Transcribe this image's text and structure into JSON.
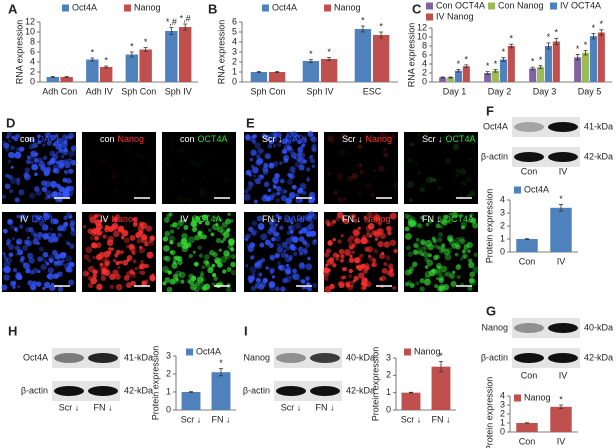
{
  "panel_letters": [
    "A",
    "B",
    "C",
    "D",
    "E",
    "F",
    "G",
    "H",
    "I"
  ],
  "chart_data": [
    {
      "type": "bar",
      "ylabel": "RNA expression",
      "categories": [
        "Adh Con",
        "Adh IV",
        "Sph Con",
        "Sph IV"
      ],
      "ylim": [
        0,
        12
      ],
      "yticks": [
        0,
        2,
        4,
        6,
        8,
        10,
        12
      ],
      "legend": "top",
      "series": [
        {
          "name": "Oct4A",
          "color": "#4f81bd",
          "values": [
            1,
            4.5,
            5.5,
            10.2
          ],
          "errors": [
            0.1,
            0.3,
            0.5,
            0.7
          ],
          "markers": [
            null,
            "*",
            "*",
            "*,#"
          ]
        },
        {
          "name": "Nanog",
          "color": "#c0504d",
          "values": [
            1,
            3,
            6.5,
            11
          ],
          "errors": [
            0.1,
            0.2,
            0.4,
            0.6
          ],
          "markers": [
            null,
            "*",
            "*",
            "*,#"
          ]
        }
      ]
    },
    {
      "type": "bar",
      "ylabel": "RNA expression",
      "categories": [
        "Sph Con",
        "Sph IV",
        "ESC"
      ],
      "ylim": [
        0,
        6
      ],
      "yticks": [
        0,
        1,
        2,
        3,
        4,
        5,
        6
      ],
      "legend": "top",
      "series": [
        {
          "name": "Oct4A",
          "color": "#4f81bd",
          "values": [
            1,
            2.1,
            5.3
          ],
          "errors": [
            0.05,
            0.15,
            0.3
          ],
          "markers": [
            null,
            "*",
            "*"
          ]
        },
        {
          "name": "Nanog",
          "color": "#c0504d",
          "values": [
            1,
            2.3,
            4.7
          ],
          "errors": [
            0.05,
            0.15,
            0.3
          ],
          "markers": [
            null,
            "*",
            "*"
          ]
        }
      ]
    },
    {
      "type": "bar",
      "ylabel": "RNA expression",
      "categories": [
        "Day 1",
        "Day 2",
        "Day 3",
        "Day 5"
      ],
      "ylim": [
        0,
        12
      ],
      "yticks": [
        0,
        2,
        4,
        6,
        8,
        10,
        12
      ],
      "legend": "top",
      "series": [
        {
          "name": "Con OCT4A",
          "color": "#8064a2",
          "values": [
            1,
            2,
            3,
            5.5
          ],
          "errors": [
            0.1,
            0.3,
            0.3,
            0.6
          ],
          "markers": [
            null,
            "*",
            "*",
            "*"
          ]
        },
        {
          "name": "Con Nanog",
          "color": "#9bbb59",
          "values": [
            1,
            2.5,
            3.3,
            6.5
          ],
          "errors": [
            0.1,
            0.3,
            0.3,
            0.5
          ],
          "markers": [
            null,
            "*",
            "*",
            "*"
          ]
        },
        {
          "name": "IV OCT4A",
          "color": "#4f81bd",
          "values": [
            2.5,
            5,
            8,
            10.2
          ],
          "errors": [
            0.3,
            0.4,
            0.7,
            0.6
          ],
          "markers": [
            "*",
            "*",
            "*",
            "*"
          ]
        },
        {
          "name": "IV Nanog",
          "color": "#c0504d",
          "values": [
            3.5,
            8,
            9,
            11
          ],
          "errors": [
            0.3,
            0.4,
            0.7,
            0.6
          ],
          "markers": [
            "*",
            "*",
            "*",
            "*"
          ]
        }
      ]
    },
    {
      "type": "bar",
      "ylabel": "Protein expression",
      "categories": [
        "Con",
        "IV"
      ],
      "ylim": [
        0,
        4
      ],
      "yticks": [
        0,
        1,
        2,
        3,
        4
      ],
      "legend": "top",
      "series": [
        {
          "name": "Oct4A",
          "color": "#4f81bd",
          "values": [
            1,
            3.4
          ],
          "errors": [
            0.03,
            0.25
          ],
          "markers": [
            null,
            "*"
          ]
        }
      ]
    },
    {
      "type": "bar",
      "ylabel": "Protein expression",
      "categories": [
        "Con",
        "IV"
      ],
      "ylim": [
        0,
        4
      ],
      "yticks": [
        0,
        1,
        2,
        3,
        4
      ],
      "legend": "top",
      "series": [
        {
          "name": "Nanog",
          "color": "#c0504d",
          "values": [
            1,
            2.8
          ],
          "errors": [
            0.03,
            0.2
          ],
          "markers": [
            null,
            "*"
          ]
        }
      ]
    },
    {
      "type": "bar",
      "ylabel": "Protein expression",
      "categories": [
        "Scr ↓",
        "FN ↓"
      ],
      "ylim": [
        0,
        3
      ],
      "yticks": [
        0,
        1,
        2,
        3
      ],
      "legend": "top",
      "series": [
        {
          "name": "Oct4A",
          "color": "#4f81bd",
          "values": [
            1,
            2.1
          ],
          "errors": [
            0.02,
            0.2
          ],
          "markers": [
            null,
            "*"
          ]
        }
      ]
    },
    {
      "type": "bar",
      "ylabel": "Protein expression",
      "categories": [
        "Scr ↓",
        "FN ↓"
      ],
      "ylim": [
        0,
        3
      ],
      "yticks": [
        0,
        1,
        2,
        3
      ],
      "legend": "top",
      "series": [
        {
          "name": "Nanog",
          "color": "#c0504d",
          "values": [
            1,
            2.5
          ],
          "errors": [
            0.02,
            0.3
          ],
          "markers": [
            null,
            "*"
          ]
        }
      ]
    }
  ],
  "images": [
    [
      {
        "prefix": "con",
        "stain": "DAPI"
      },
      {
        "prefix": "con",
        "stain": "Nanog"
      },
      {
        "prefix": "con",
        "stain": "OCT4A"
      },
      {
        "prefix": "IV",
        "stain": "DAPI"
      },
      {
        "prefix": "IV",
        "stain": "Nanog"
      },
      {
        "prefix": "IV",
        "stain": "OCT4A"
      }
    ],
    [
      {
        "prefix": "Scr ↓",
        "stain": "DAPI"
      },
      {
        "prefix": "Scr ↓",
        "stain": "Nanog"
      },
      {
        "prefix": "Scr ↓",
        "stain": "OCT4A"
      },
      {
        "prefix": "FN ↓",
        "stain": "DAPI"
      },
      {
        "prefix": "FN ↓",
        "stain": "Nanog"
      },
      {
        "prefix": "FN ↓",
        "stain": "OCT4A"
      }
    ]
  ],
  "blots": [
    {
      "rows": [
        {
          "name": "Oct4A",
          "size": "41-kDa"
        },
        {
          "name": "β-actin",
          "size": "42-kDa"
        }
      ],
      "lanes": [
        "Con",
        "IV"
      ]
    },
    {
      "rows": [
        {
          "name": "Nanog",
          "size": "40-kDa"
        },
        {
          "name": "β-actin",
          "size": "42-kDa"
        }
      ],
      "lanes": [
        "Con",
        "IV"
      ]
    },
    {
      "rows": [
        {
          "name": "Oct4A",
          "size": "41-kDa"
        },
        {
          "name": "β-actin",
          "size": "42-kDa"
        }
      ],
      "lanes": [
        "Scr ↓",
        "FN ↓"
      ]
    },
    {
      "rows": [
        {
          "name": "Nanog",
          "size": "40-kDa"
        },
        {
          "name": "β-actin",
          "size": "42-kDa"
        }
      ],
      "lanes": [
        "Scr ↓",
        "FN ↓"
      ]
    }
  ]
}
